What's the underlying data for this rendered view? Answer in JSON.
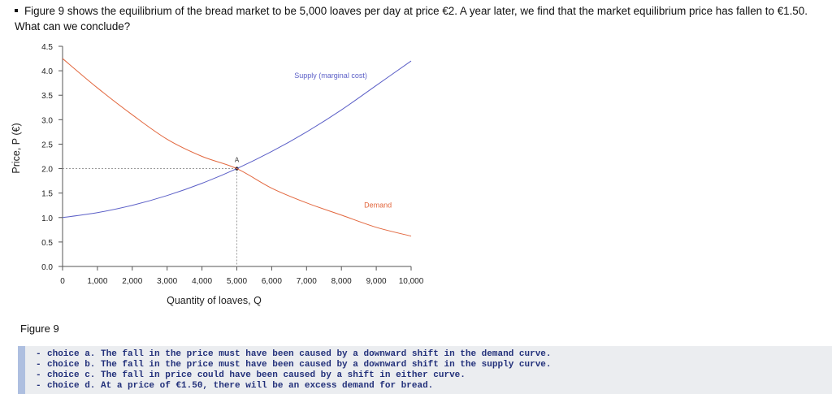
{
  "question": {
    "text": "Figure 9 shows the equilibrium of the bread market to be 5,000 loaves per day at price €2. A year later, we find that the market equilibrium price has fallen to €1.50. What can we conclude?"
  },
  "figure_caption": "Figure 9",
  "choices": [
    "choice a.  The fall in the price must have been caused by a downward shift in the demand curve.",
    "choice b.  The fall in the price must have been caused by a downward shift in the supply curve.",
    "choice c.  The fall in price could have been caused by a shift in either curve.",
    "choice d.  At a price of €1.50, there will be an excess demand for bread."
  ],
  "colors": {
    "supply": "#5b5fc7",
    "demand": "#e2673e",
    "axis": "#555555",
    "guide": "#999999",
    "choices_text": "#22307a"
  },
  "chart_data": {
    "type": "line",
    "xlabel": "Quantity of loaves, Q",
    "ylabel": "Price, P (€)",
    "xlim": [
      0,
      10000
    ],
    "ylim": [
      0,
      4.5
    ],
    "xticks": [
      0,
      1000,
      2000,
      3000,
      4000,
      5000,
      6000,
      7000,
      8000,
      9000,
      10000
    ],
    "xtick_labels": [
      "0",
      "1,000",
      "2,000",
      "3,000",
      "4,000",
      "5,000",
      "6,000",
      "7,000",
      "8,000",
      "9,000",
      "10,000"
    ],
    "yticks": [
      0,
      0.5,
      1.0,
      1.5,
      2.0,
      2.5,
      3.0,
      3.5,
      4.0,
      4.5
    ],
    "ytick_labels": [
      "0.0",
      "0.5",
      "1.0",
      "1.5",
      "2.0",
      "2.5",
      "3.0",
      "3.5",
      "4.0",
      "4.5"
    ],
    "grid": false,
    "series": [
      {
        "name": "Supply (marginal cost)",
        "x": [
          0,
          1000,
          2000,
          3000,
          4000,
          5000,
          6000,
          7000,
          8000,
          9000,
          10000
        ],
        "y": [
          1.0,
          1.1,
          1.25,
          1.45,
          1.7,
          2.0,
          2.35,
          2.75,
          3.2,
          3.7,
          4.2
        ]
      },
      {
        "name": "Demand",
        "x": [
          0,
          1000,
          2000,
          3000,
          4000,
          5000,
          6000,
          7000,
          8000,
          9000,
          10000
        ],
        "y": [
          4.25,
          3.65,
          3.1,
          2.6,
          2.25,
          2.0,
          1.6,
          1.3,
          1.05,
          0.8,
          0.62
        ]
      }
    ],
    "annotations": [
      {
        "label": "A",
        "x": 5000,
        "y": 2.0
      }
    ]
  }
}
